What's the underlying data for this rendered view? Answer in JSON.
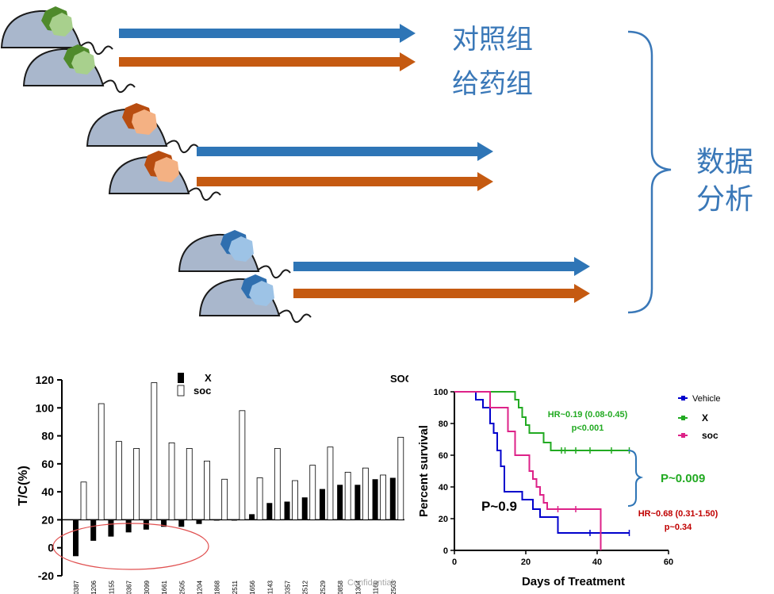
{
  "diagram": {
    "labels": {
      "control_group": "对照组",
      "treatment_group": "给药组",
      "analysis_line1": "数据",
      "analysis_line2": "分析"
    },
    "colors": {
      "control_arrow": "#2e75b6",
      "treatment_arrow": "#c55a11",
      "mouse_body": "#a9b7cc",
      "tumor_green": "#70ad47",
      "tumor_orange": "#d46a1e",
      "tumor_blue": "#3b7dc4",
      "brace": "#3a78b8"
    }
  },
  "chart_data": [
    {
      "type": "bar",
      "ylabel": "T/C(%)",
      "ylim": [
        -20,
        120
      ],
      "yticks": [
        -20,
        0,
        20,
        40,
        60,
        80,
        100,
        120
      ],
      "categories": [
        "LU0387",
        "LU1206",
        "LU1155",
        "LU0367",
        "LU3099",
        "LU1661",
        "LU2505",
        "LU1204",
        "LU1868",
        "LU2511",
        "LU1656",
        "LU1143",
        "LU0357",
        "LU2512",
        "LU2529",
        "LU0858",
        "LU1304",
        "LU1160",
        "LU2503"
      ],
      "series": [
        {
          "name": "X",
          "values": [
            -6,
            5,
            8,
            11,
            13,
            15,
            15,
            17,
            20,
            20,
            24,
            32,
            33,
            36,
            42,
            45,
            45,
            49,
            50
          ]
        },
        {
          "name": "soc",
          "values": [
            47,
            103,
            76,
            71,
            118,
            75,
            71,
            62,
            49,
            98,
            50,
            71,
            48,
            59,
            72,
            54,
            57,
            52,
            79
          ]
        }
      ],
      "corner_label": "SOC",
      "watermark": "Confidential",
      "colors": {
        "X": "#000000",
        "soc": "#ffffff",
        "highlight": "#e05050"
      }
    },
    {
      "type": "line",
      "xlabel": "Days of Treatment",
      "ylabel": "Percent survival",
      "xlim": [
        0,
        60
      ],
      "ylim": [
        0,
        100
      ],
      "xticks": [
        0,
        20,
        40,
        60
      ],
      "yticks": [
        0,
        20,
        40,
        60,
        80,
        100
      ],
      "series": [
        {
          "name": "Vehicle",
          "color": "#0000cc",
          "points": [
            [
              0,
              100
            ],
            [
              6,
              100
            ],
            [
              6,
              95
            ],
            [
              8,
              95
            ],
            [
              8,
              90
            ],
            [
              10,
              90
            ],
            [
              10,
              80
            ],
            [
              11,
              80
            ],
            [
              11,
              74
            ],
            [
              12,
              74
            ],
            [
              12,
              63
            ],
            [
              13,
              63
            ],
            [
              13,
              53
            ],
            [
              14,
              53
            ],
            [
              14,
              37
            ],
            [
              19,
              37
            ],
            [
              19,
              32
            ],
            [
              22,
              32
            ],
            [
              22,
              26
            ],
            [
              24,
              26
            ],
            [
              24,
              21
            ],
            [
              29,
              21
            ],
            [
              29,
              11
            ],
            [
              49,
              11
            ]
          ],
          "censor": [
            38,
            49
          ]
        },
        {
          "name": "X",
          "color": "#22aa22",
          "points": [
            [
              0,
              100
            ],
            [
              17,
              100
            ],
            [
              17,
              95
            ],
            [
              18,
              95
            ],
            [
              18,
              90
            ],
            [
              19,
              90
            ],
            [
              19,
              84
            ],
            [
              20,
              84
            ],
            [
              20,
              79
            ],
            [
              21,
              79
            ],
            [
              21,
              74
            ],
            [
              25,
              74
            ],
            [
              25,
              68
            ],
            [
              27,
              68
            ],
            [
              27,
              63
            ],
            [
              49,
              63
            ]
          ],
          "censor": [
            30,
            31,
            34,
            38,
            44,
            49
          ]
        },
        {
          "name": "soc",
          "color": "#dd2288",
          "points": [
            [
              0,
              100
            ],
            [
              10,
              100
            ],
            [
              10,
              90
            ],
            [
              15,
              90
            ],
            [
              15,
              75
            ],
            [
              17,
              75
            ],
            [
              17,
              60
            ],
            [
              21,
              60
            ],
            [
              21,
              50
            ],
            [
              22,
              50
            ],
            [
              22,
              45
            ],
            [
              23,
              45
            ],
            [
              23,
              40
            ],
            [
              24,
              40
            ],
            [
              24,
              35
            ],
            [
              25,
              35
            ],
            [
              25,
              30
            ],
            [
              26,
              30
            ],
            [
              26,
              26
            ],
            [
              41,
              26
            ],
            [
              41,
              0
            ]
          ],
          "censor": [
            29,
            34
          ]
        }
      ],
      "annotations": {
        "x_hr": "HR~0.19 (0.08-0.45)",
        "x_p": "p<0.001",
        "soc_hr": "HR~0.68 (0.31-1.50)",
        "soc_p": "p~0.34",
        "p_vehicle": "P~0.9",
        "p_compare": "P~0.009"
      },
      "colors": {
        "bracket": "#2e75b6",
        "p_compare": "#22aa22",
        "soc_text": "#c00000",
        "x_text": "#22aa22"
      }
    }
  ]
}
